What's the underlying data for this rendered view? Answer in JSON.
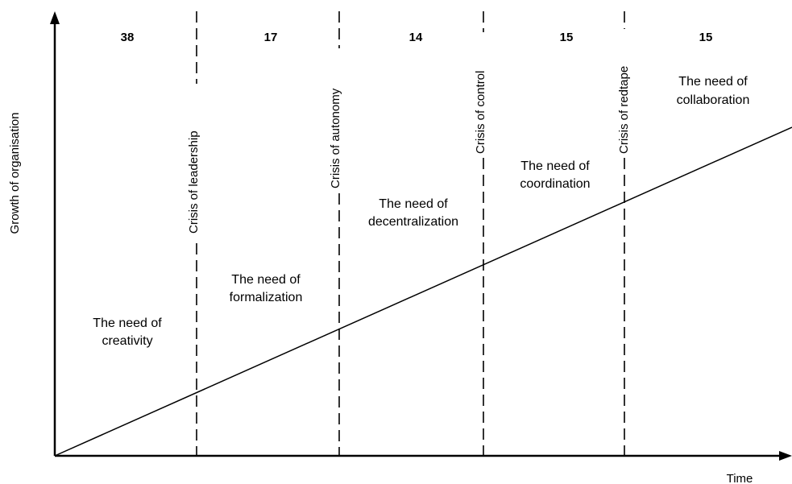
{
  "axes": {
    "y_label": "Growth of organisation",
    "x_label": "Time"
  },
  "phases": [
    {
      "count": "38",
      "need": [
        "The need of",
        "creativity"
      ]
    },
    {
      "count": "17",
      "need": [
        "The need of",
        "formalization"
      ]
    },
    {
      "count": "14",
      "need": [
        "The need of",
        "decentralization"
      ]
    },
    {
      "count": "15",
      "need": [
        "The need of",
        "coordination"
      ]
    },
    {
      "count": "15",
      "need": [
        "The need of",
        "collaboration"
      ]
    }
  ],
  "crises": [
    {
      "label": "Crisis of leadership"
    },
    {
      "label": "Crisis of autonomy"
    },
    {
      "label": "Crisis of control"
    },
    {
      "label": "Crisis of redtape"
    }
  ]
}
